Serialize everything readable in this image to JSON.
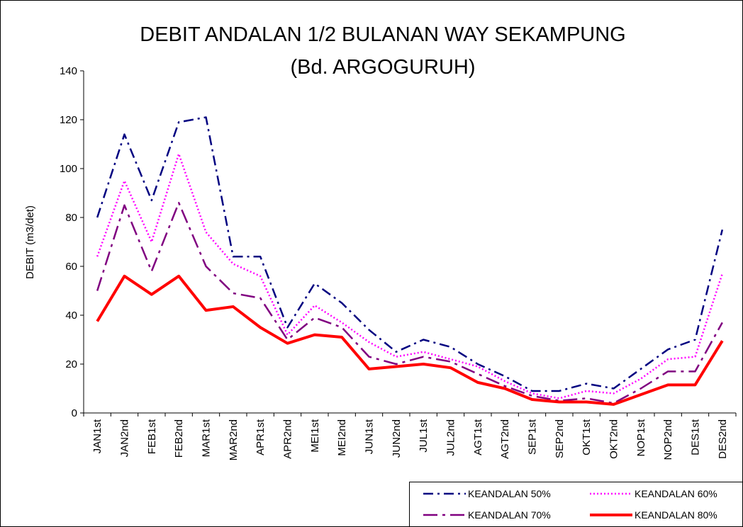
{
  "chart_data": {
    "type": "line",
    "title": "DEBIT ANDALAN 1/2 BULANAN WAY SEKAMPUNG",
    "subtitle": "(Bd. ARGOGURUH)",
    "y_label": "DEBIT (m3/det)",
    "categories": [
      "JAN1st",
      "JAN2nd",
      "FEB1st",
      "FEB2nd",
      "MAR1st",
      "MAR2nd",
      "APR1st",
      "APR2nd",
      "MEI1st",
      "MEI2nd",
      "JUN1st",
      "JUN2nd",
      "JUL1st",
      "JUL2nd",
      "AGT1st",
      "AGT2nd",
      "SEP1st",
      "SEP2nd",
      "OKT1st",
      "OKT2nd",
      "NOP1st",
      "NOP2nd",
      "DES1st",
      "DES2nd"
    ],
    "series": [
      {
        "name": "KEANDALAN 50%",
        "color": "#000080",
        "dash": "dash-dot",
        "values": [
          80,
          114,
          87,
          119,
          121,
          64,
          64,
          35,
          53,
          45,
          34,
          25,
          30,
          27,
          20,
          15,
          9,
          9,
          12,
          10,
          18,
          26,
          30,
          75
        ]
      },
      {
        "name": "KEANDALAN 60%",
        "color": "#ff00ff",
        "dash": "dot",
        "values": [
          64,
          95,
          70,
          106,
          74,
          61,
          56,
          32,
          44,
          37,
          29,
          23,
          25,
          22,
          19,
          13,
          8,
          6,
          9,
          8,
          14,
          22,
          23,
          57
        ]
      },
      {
        "name": "KEANDALAN 70%",
        "color": "#800080",
        "dash": "long-dash-dot",
        "values": [
          50,
          85,
          58,
          86,
          60,
          49,
          47,
          30,
          39,
          35,
          23,
          20,
          23,
          21,
          16,
          11,
          7,
          5,
          6,
          4,
          10,
          17,
          17,
          37
        ]
      },
      {
        "name": "KEANDALAN 80%",
        "color": "#ff0000",
        "dash": "solid",
        "values": [
          37.5,
          56,
          48.5,
          56,
          42,
          43.5,
          35,
          28.5,
          32,
          31,
          18,
          19,
          20,
          18.5,
          12.5,
          10,
          5.5,
          4.5,
          4.5,
          3.5,
          7.5,
          11.5,
          11.5,
          29.5
        ]
      }
    ],
    "ylim": [
      0,
      140
    ],
    "yticks": [
      0,
      20,
      40,
      60,
      80,
      100,
      120,
      140
    ]
  }
}
